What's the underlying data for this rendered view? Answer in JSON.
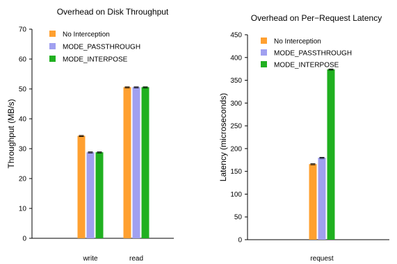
{
  "colors": {
    "no_interception": "#ffa030",
    "mode_passthrough": "#a0a0f0",
    "mode_interpose": "#20b020"
  },
  "chart_data": [
    {
      "type": "bar",
      "title": "Overhead on Disk Throughput",
      "xlabel": "",
      "ylabel": "Throughput (MB/s)",
      "ylim": [
        0,
        70
      ],
      "yticks": [
        0,
        10,
        20,
        30,
        40,
        50,
        60,
        70
      ],
      "categories": [
        "write",
        "read"
      ],
      "legend_position": "top-left",
      "series": [
        {
          "name": "No Interception",
          "values": [
            34.3,
            50.6
          ]
        },
        {
          "name": "MODE_PASSTHROUGH",
          "values": [
            28.8,
            50.6
          ]
        },
        {
          "name": "MODE_INTERPOSE",
          "values": [
            28.8,
            50.6
          ]
        }
      ]
    },
    {
      "type": "bar",
      "title": "Overhead on Per−Request Latency",
      "xlabel": "",
      "ylabel": "Latency (microseconds)",
      "ylim": [
        0,
        450
      ],
      "yticks": [
        0,
        50,
        100,
        150,
        200,
        250,
        300,
        350,
        400,
        450
      ],
      "categories": [
        "request"
      ],
      "legend_position": "top-left",
      "series": [
        {
          "name": "No Interception",
          "values": [
            166
          ]
        },
        {
          "name": "MODE_PASSTHROUGH",
          "values": [
            180
          ]
        },
        {
          "name": "MODE_INTERPOSE",
          "values": [
            374
          ]
        }
      ]
    }
  ]
}
